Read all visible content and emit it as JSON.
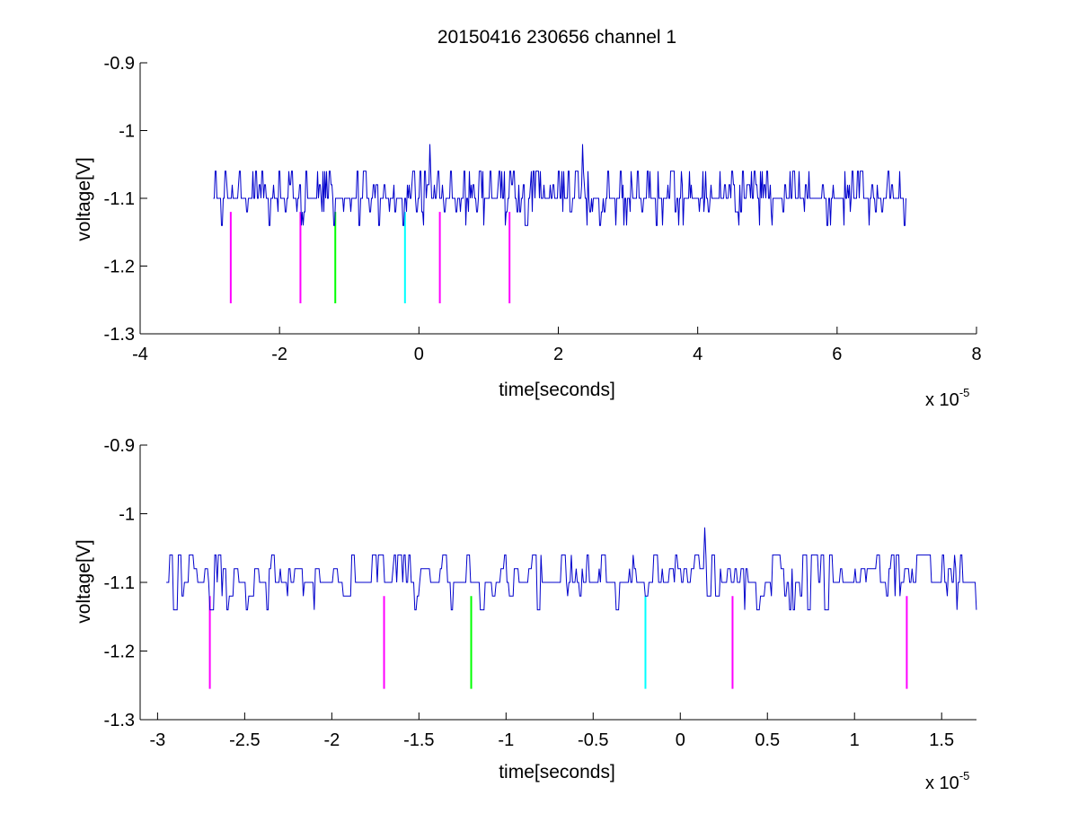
{
  "chart_data": [
    {
      "type": "line",
      "title": "20150416 230656 channel 1",
      "xlabel": "time[seconds]",
      "ylabel": "voltage[V]",
      "x_multiplier_label": "x 10",
      "x_multiplier_exponent": "-5",
      "xlim": [
        -4e-05,
        8e-05
      ],
      "ylim": [
        -1.3,
        -0.9
      ],
      "xticks": [
        -4e-05,
        -2e-05,
        0,
        2e-05,
        4e-05,
        6e-05,
        8e-05
      ],
      "xtick_labels": [
        "-4",
        "-2",
        "0",
        "2",
        "4",
        "6",
        "8"
      ],
      "yticks": [
        -0.9,
        -1,
        -1.1,
        -1.2,
        -1.3
      ],
      "ytick_labels": [
        "-0.9",
        "-1",
        "-1.1",
        "-1.2",
        "-1.3"
      ],
      "grid": false,
      "signal": {
        "color": "#0000cc",
        "x_start": -2.95e-05,
        "x_end": 7e-05,
        "baseline": -1.1,
        "levels": [
          -1.06,
          -1.08,
          -1.1,
          -1.12,
          -1.14
        ],
        "spikes": [
          {
            "x": 1.5e-06,
            "y": -1.02
          },
          {
            "x": 2.35e-05,
            "y": -1.02
          }
        ]
      },
      "markers": [
        {
          "x": -2.7e-05,
          "y_top": -1.12,
          "y_bottom": -1.255,
          "color": "#ff00ff"
        },
        {
          "x": -1.7e-05,
          "y_top": -1.12,
          "y_bottom": -1.255,
          "color": "#ff00ff"
        },
        {
          "x": -1.2e-05,
          "y_top": -1.12,
          "y_bottom": -1.255,
          "color": "#00ff00"
        },
        {
          "x": -2e-06,
          "y_top": -1.12,
          "y_bottom": -1.255,
          "color": "#00ffff"
        },
        {
          "x": 3e-06,
          "y_top": -1.12,
          "y_bottom": -1.255,
          "color": "#ff00ff"
        },
        {
          "x": 1.3e-05,
          "y_top": -1.12,
          "y_bottom": -1.255,
          "color": "#ff00ff"
        }
      ]
    },
    {
      "type": "line",
      "title": "",
      "xlabel": "time[seconds]",
      "ylabel": "voltage[V]",
      "x_multiplier_label": "x 10",
      "x_multiplier_exponent": "-5",
      "xlim": [
        -3.1e-05,
        1.7e-05
      ],
      "ylim": [
        -1.3,
        -0.9
      ],
      "xticks": [
        -3e-05,
        -2.5e-05,
        -2e-05,
        -1.5e-05,
        -1e-05,
        -5e-06,
        0,
        5e-06,
        1e-05,
        1.5e-05
      ],
      "xtick_labels": [
        "-3",
        "-2.5",
        "-2",
        "-1.5",
        "-1",
        "-0.5",
        "0",
        "0.5",
        "1",
        "1.5"
      ],
      "yticks": [
        -0.9,
        -1,
        -1.1,
        -1.2,
        -1.3
      ],
      "ytick_labels": [
        "-0.9",
        "-1",
        "-1.1",
        "-1.2",
        "-1.3"
      ],
      "grid": false,
      "signal": {
        "color": "#0000cc",
        "x_start": -2.95e-05,
        "x_end": 1.7e-05,
        "baseline": -1.1,
        "levels": [
          -1.06,
          -1.08,
          -1.1,
          -1.12,
          -1.14
        ],
        "spikes": [
          {
            "x": 1.4e-06,
            "y": -1.02
          }
        ]
      },
      "markers": [
        {
          "x": -2.7e-05,
          "y_top": -1.12,
          "y_bottom": -1.255,
          "color": "#ff00ff"
        },
        {
          "x": -1.7e-05,
          "y_top": -1.12,
          "y_bottom": -1.255,
          "color": "#ff00ff"
        },
        {
          "x": -1.2e-05,
          "y_top": -1.12,
          "y_bottom": -1.255,
          "color": "#00ff00"
        },
        {
          "x": -2e-06,
          "y_top": -1.12,
          "y_bottom": -1.255,
          "color": "#00ffff"
        },
        {
          "x": 3e-06,
          "y_top": -1.12,
          "y_bottom": -1.255,
          "color": "#ff00ff"
        },
        {
          "x": 1.3e-05,
          "y_top": -1.12,
          "y_bottom": -1.255,
          "color": "#ff00ff"
        }
      ]
    }
  ]
}
